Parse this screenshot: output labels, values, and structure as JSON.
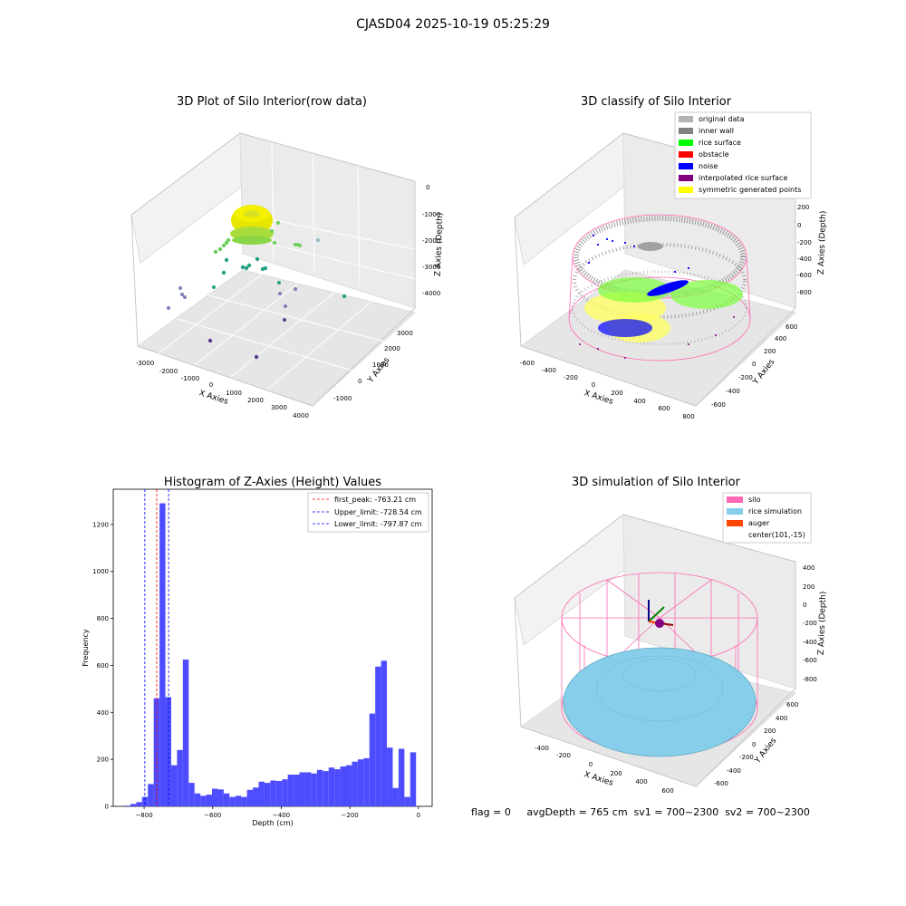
{
  "figure": {
    "suptitle": "CJASD04 2025-10-19 05:25:29",
    "footer": "flag = 0     avgDepth = 765 cm  sv1 = 700~2300  sv2 = 700~2300"
  },
  "colors": {
    "hist_bar": "#4d4dff",
    "peak_line": "#ff0000",
    "limit_line": "#0000ff",
    "silo": "#ff69b4",
    "rice": "#87ceeb",
    "auger": "#ff4500",
    "original": "#b3b3b3",
    "inner_wall": "#808080",
    "rice_surface": "#00ff00",
    "obstacle": "#ff0000",
    "noise": "#0000ff",
    "interp": "#800080",
    "symmetric": "#ffff00"
  },
  "chart_data": [
    {
      "type": "scatter",
      "title": "3D Plot of Silo Interior(row data)",
      "xlabel": "X Axies",
      "ylabel": "Y Axies",
      "zlabel": "Z Axies (Depth)",
      "xticks": [
        "-3000",
        "-2000",
        "-1000",
        "0",
        "1000",
        "2000",
        "3000",
        "4000"
      ],
      "yticks": [
        "-1000",
        "0",
        "1000",
        "2000",
        "3000"
      ],
      "zticks": [
        "0",
        "-1000",
        "-2000",
        "-3000",
        "-4000"
      ]
    },
    {
      "type": "scatter",
      "title": "3D classify of Silo Interior",
      "xlabel": "X Axies",
      "ylabel": "Y Axies",
      "zlabel": "Z Axies (Depth)",
      "xticks": [
        "-600",
        "-400",
        "-200",
        "0",
        "200",
        "400",
        "600",
        "800"
      ],
      "yticks": [
        "-600",
        "-400",
        "-200",
        "0",
        "200",
        "400",
        "600"
      ],
      "zticks": [
        "200",
        "0",
        "-200",
        "-400",
        "-600",
        "-800"
      ],
      "legend": [
        "original data",
        "inner wall",
        "rice surface",
        "obstacle",
        "noise",
        "interpolated rice surface",
        "symmetric generated points"
      ],
      "legend_position": "top-right"
    },
    {
      "type": "bar",
      "title": "Histogram of Z-Axies (Height) Values",
      "xlabel": "Depth (cm)",
      "ylabel": "Frequency",
      "xlim": [
        -890,
        40
      ],
      "ylim": [
        0,
        1350
      ],
      "xticks": [
        -800,
        -600,
        -400,
        -200,
        0
      ],
      "yticks": [
        0,
        200,
        400,
        600,
        800,
        1000,
        1200
      ],
      "bin_width": 17.0,
      "bin_start": -857,
      "values": [
        3,
        10,
        18,
        40,
        95,
        460,
        1290,
        465,
        175,
        240,
        625,
        100,
        55,
        45,
        50,
        75,
        72,
        55,
        40,
        45,
        40,
        70,
        80,
        105,
        100,
        110,
        108,
        115,
        135,
        135,
        145,
        145,
        140,
        155,
        150,
        165,
        158,
        170,
        175,
        190,
        200,
        205,
        395,
        595,
        620,
        250,
        78,
        245,
        40,
        230
      ],
      "vlines": [
        {
          "label": "first_peak: -763.21 cm",
          "x": -763.21,
          "style": "peak"
        },
        {
          "label": "Upper_limit: -728.54 cm",
          "x": -728.54,
          "style": "limit"
        },
        {
          "label": "Lower_limit: -797.87 cm",
          "x": -797.87,
          "style": "limit"
        }
      ],
      "legend_position": "top-right"
    },
    {
      "type": "area",
      "title": "3D simulation of Silo Interior",
      "xlabel": "X Axies",
      "ylabel": "Y Axies",
      "zlabel": "Z Axies (Depth)",
      "xticks": [
        "-400",
        "-200",
        "0",
        "200",
        "400",
        "600"
      ],
      "yticks": [
        "-600",
        "-400",
        "-200",
        "0",
        "200",
        "400",
        "600"
      ],
      "zticks": [
        "400",
        "200",
        "0",
        "-200",
        "-400",
        "-600",
        "-800"
      ],
      "legend": [
        "silo",
        "rice simulation",
        "auger",
        "center(101,-15)"
      ],
      "legend_position": "top-right"
    }
  ]
}
